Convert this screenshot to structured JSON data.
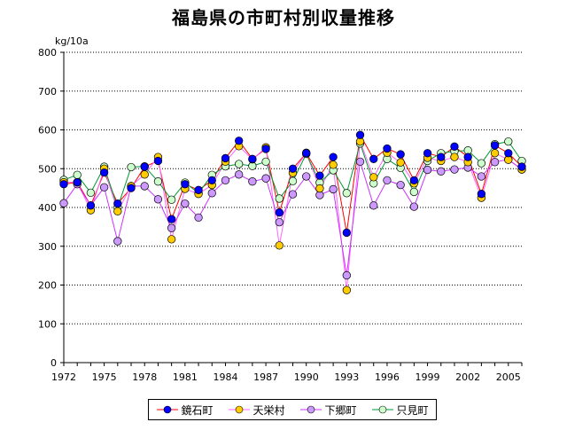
{
  "chart_data": {
    "type": "line",
    "title": "福島県の市町村別収量推移",
    "ylabel": "kg/10a",
    "xlabel": "",
    "ylim": [
      0,
      800
    ],
    "yticks": [
      0,
      100,
      200,
      300,
      400,
      500,
      600,
      700,
      800
    ],
    "xlim": [
      1972,
      2006
    ],
    "xticks": [
      1972,
      1975,
      1978,
      1981,
      1984,
      1987,
      1990,
      1993,
      1996,
      1999,
      2002,
      2005
    ],
    "grid": "horizontal-dotted",
    "legend_position": "bottom",
    "x": [
      1972,
      1973,
      1974,
      1975,
      1976,
      1977,
      1978,
      1979,
      1980,
      1981,
      1982,
      1983,
      1984,
      1985,
      1986,
      1987,
      1988,
      1989,
      1990,
      1991,
      1992,
      1993,
      1994,
      1995,
      1996,
      1997,
      1998,
      1999,
      2000,
      2001,
      2002,
      2003,
      2004,
      2005,
      2006
    ],
    "series": [
      {
        "name": "鏡石町",
        "line_color": "#ff0000",
        "marker_color": "#0000ff",
        "values": [
          460,
          465,
          405,
          490,
          410,
          450,
          505,
          520,
          370,
          460,
          445,
          470,
          527,
          572,
          525,
          551,
          387,
          500,
          540,
          482,
          530,
          335,
          587,
          525,
          552,
          537,
          470,
          540,
          530,
          557,
          530,
          435,
          560,
          540,
          505
        ]
      },
      {
        "name": "天栄村",
        "line_color": "#ff66ff",
        "marker_color": "#ffcc00",
        "values": [
          465,
          465,
          393,
          500,
          390,
          455,
          485,
          530,
          318,
          448,
          435,
          458,
          518,
          558,
          524,
          555,
          302,
          489,
          541,
          449,
          510,
          187,
          570,
          478,
          541,
          516,
          462,
          528,
          520,
          530,
          517,
          425,
          540,
          523,
          498
        ]
      },
      {
        "name": "下郷町",
        "line_color": "#cc33ff",
        "marker_color": "#cc99ff",
        "values": [
          411,
          460,
          405,
          452,
          313,
          455,
          455,
          421,
          347,
          410,
          374,
          437,
          470,
          485,
          467,
          475,
          362,
          434,
          480,
          432,
          447,
          225,
          518,
          405,
          470,
          458,
          402,
          497,
          493,
          498,
          503,
          480,
          517,
          524,
          498
        ]
      },
      {
        "name": "只見町",
        "line_color": "#009933",
        "marker_color": "#ccffcc",
        "values": [
          471,
          484,
          438,
          505,
          400,
          504,
          506,
          467,
          420,
          464,
          437,
          484,
          506,
          512,
          507,
          518,
          423,
          468,
          538,
          464,
          496,
          437,
          565,
          462,
          525,
          502,
          440,
          520,
          540,
          545,
          547,
          514,
          563,
          570,
          520
        ]
      }
    ]
  }
}
